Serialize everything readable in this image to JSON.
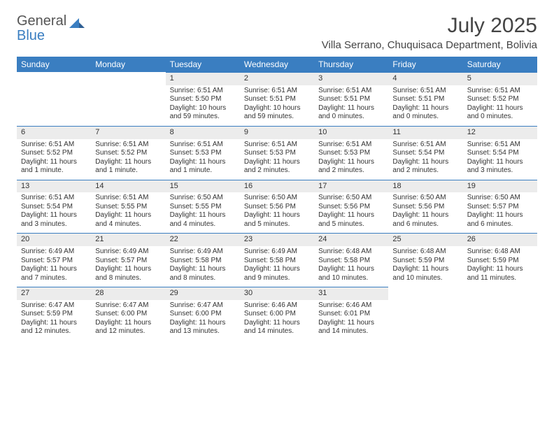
{
  "brand": {
    "line1": "General",
    "line2": "Blue"
  },
  "title": "July 2025",
  "location": "Villa Serrano, Chuquisaca Department, Bolivia",
  "colors": {
    "accent": "#3a7ec1",
    "daynum_bg": "#ececec"
  },
  "day_headers": [
    "Sunday",
    "Monday",
    "Tuesday",
    "Wednesday",
    "Thursday",
    "Friday",
    "Saturday"
  ],
  "weeks": [
    [
      null,
      null,
      {
        "n": "1",
        "sunrise": "Sunrise: 6:51 AM",
        "sunset": "Sunset: 5:50 PM",
        "daylight": "Daylight: 10 hours and 59 minutes."
      },
      {
        "n": "2",
        "sunrise": "Sunrise: 6:51 AM",
        "sunset": "Sunset: 5:51 PM",
        "daylight": "Daylight: 10 hours and 59 minutes."
      },
      {
        "n": "3",
        "sunrise": "Sunrise: 6:51 AM",
        "sunset": "Sunset: 5:51 PM",
        "daylight": "Daylight: 11 hours and 0 minutes."
      },
      {
        "n": "4",
        "sunrise": "Sunrise: 6:51 AM",
        "sunset": "Sunset: 5:51 PM",
        "daylight": "Daylight: 11 hours and 0 minutes."
      },
      {
        "n": "5",
        "sunrise": "Sunrise: 6:51 AM",
        "sunset": "Sunset: 5:52 PM",
        "daylight": "Daylight: 11 hours and 0 minutes."
      }
    ],
    [
      {
        "n": "6",
        "sunrise": "Sunrise: 6:51 AM",
        "sunset": "Sunset: 5:52 PM",
        "daylight": "Daylight: 11 hours and 1 minute."
      },
      {
        "n": "7",
        "sunrise": "Sunrise: 6:51 AM",
        "sunset": "Sunset: 5:52 PM",
        "daylight": "Daylight: 11 hours and 1 minute."
      },
      {
        "n": "8",
        "sunrise": "Sunrise: 6:51 AM",
        "sunset": "Sunset: 5:53 PM",
        "daylight": "Daylight: 11 hours and 1 minute."
      },
      {
        "n": "9",
        "sunrise": "Sunrise: 6:51 AM",
        "sunset": "Sunset: 5:53 PM",
        "daylight": "Daylight: 11 hours and 2 minutes."
      },
      {
        "n": "10",
        "sunrise": "Sunrise: 6:51 AM",
        "sunset": "Sunset: 5:53 PM",
        "daylight": "Daylight: 11 hours and 2 minutes."
      },
      {
        "n": "11",
        "sunrise": "Sunrise: 6:51 AM",
        "sunset": "Sunset: 5:54 PM",
        "daylight": "Daylight: 11 hours and 2 minutes."
      },
      {
        "n": "12",
        "sunrise": "Sunrise: 6:51 AM",
        "sunset": "Sunset: 5:54 PM",
        "daylight": "Daylight: 11 hours and 3 minutes."
      }
    ],
    [
      {
        "n": "13",
        "sunrise": "Sunrise: 6:51 AM",
        "sunset": "Sunset: 5:54 PM",
        "daylight": "Daylight: 11 hours and 3 minutes."
      },
      {
        "n": "14",
        "sunrise": "Sunrise: 6:51 AM",
        "sunset": "Sunset: 5:55 PM",
        "daylight": "Daylight: 11 hours and 4 minutes."
      },
      {
        "n": "15",
        "sunrise": "Sunrise: 6:50 AM",
        "sunset": "Sunset: 5:55 PM",
        "daylight": "Daylight: 11 hours and 4 minutes."
      },
      {
        "n": "16",
        "sunrise": "Sunrise: 6:50 AM",
        "sunset": "Sunset: 5:56 PM",
        "daylight": "Daylight: 11 hours and 5 minutes."
      },
      {
        "n": "17",
        "sunrise": "Sunrise: 6:50 AM",
        "sunset": "Sunset: 5:56 PM",
        "daylight": "Daylight: 11 hours and 5 minutes."
      },
      {
        "n": "18",
        "sunrise": "Sunrise: 6:50 AM",
        "sunset": "Sunset: 5:56 PM",
        "daylight": "Daylight: 11 hours and 6 minutes."
      },
      {
        "n": "19",
        "sunrise": "Sunrise: 6:50 AM",
        "sunset": "Sunset: 5:57 PM",
        "daylight": "Daylight: 11 hours and 6 minutes."
      }
    ],
    [
      {
        "n": "20",
        "sunrise": "Sunrise: 6:49 AM",
        "sunset": "Sunset: 5:57 PM",
        "daylight": "Daylight: 11 hours and 7 minutes."
      },
      {
        "n": "21",
        "sunrise": "Sunrise: 6:49 AM",
        "sunset": "Sunset: 5:57 PM",
        "daylight": "Daylight: 11 hours and 8 minutes."
      },
      {
        "n": "22",
        "sunrise": "Sunrise: 6:49 AM",
        "sunset": "Sunset: 5:58 PM",
        "daylight": "Daylight: 11 hours and 8 minutes."
      },
      {
        "n": "23",
        "sunrise": "Sunrise: 6:49 AM",
        "sunset": "Sunset: 5:58 PM",
        "daylight": "Daylight: 11 hours and 9 minutes."
      },
      {
        "n": "24",
        "sunrise": "Sunrise: 6:48 AM",
        "sunset": "Sunset: 5:58 PM",
        "daylight": "Daylight: 11 hours and 10 minutes."
      },
      {
        "n": "25",
        "sunrise": "Sunrise: 6:48 AM",
        "sunset": "Sunset: 5:59 PM",
        "daylight": "Daylight: 11 hours and 10 minutes."
      },
      {
        "n": "26",
        "sunrise": "Sunrise: 6:48 AM",
        "sunset": "Sunset: 5:59 PM",
        "daylight": "Daylight: 11 hours and 11 minutes."
      }
    ],
    [
      {
        "n": "27",
        "sunrise": "Sunrise: 6:47 AM",
        "sunset": "Sunset: 5:59 PM",
        "daylight": "Daylight: 11 hours and 12 minutes."
      },
      {
        "n": "28",
        "sunrise": "Sunrise: 6:47 AM",
        "sunset": "Sunset: 6:00 PM",
        "daylight": "Daylight: 11 hours and 12 minutes."
      },
      {
        "n": "29",
        "sunrise": "Sunrise: 6:47 AM",
        "sunset": "Sunset: 6:00 PM",
        "daylight": "Daylight: 11 hours and 13 minutes."
      },
      {
        "n": "30",
        "sunrise": "Sunrise: 6:46 AM",
        "sunset": "Sunset: 6:00 PM",
        "daylight": "Daylight: 11 hours and 14 minutes."
      },
      {
        "n": "31",
        "sunrise": "Sunrise: 6:46 AM",
        "sunset": "Sunset: 6:01 PM",
        "daylight": "Daylight: 11 hours and 14 minutes."
      },
      null,
      null
    ]
  ]
}
